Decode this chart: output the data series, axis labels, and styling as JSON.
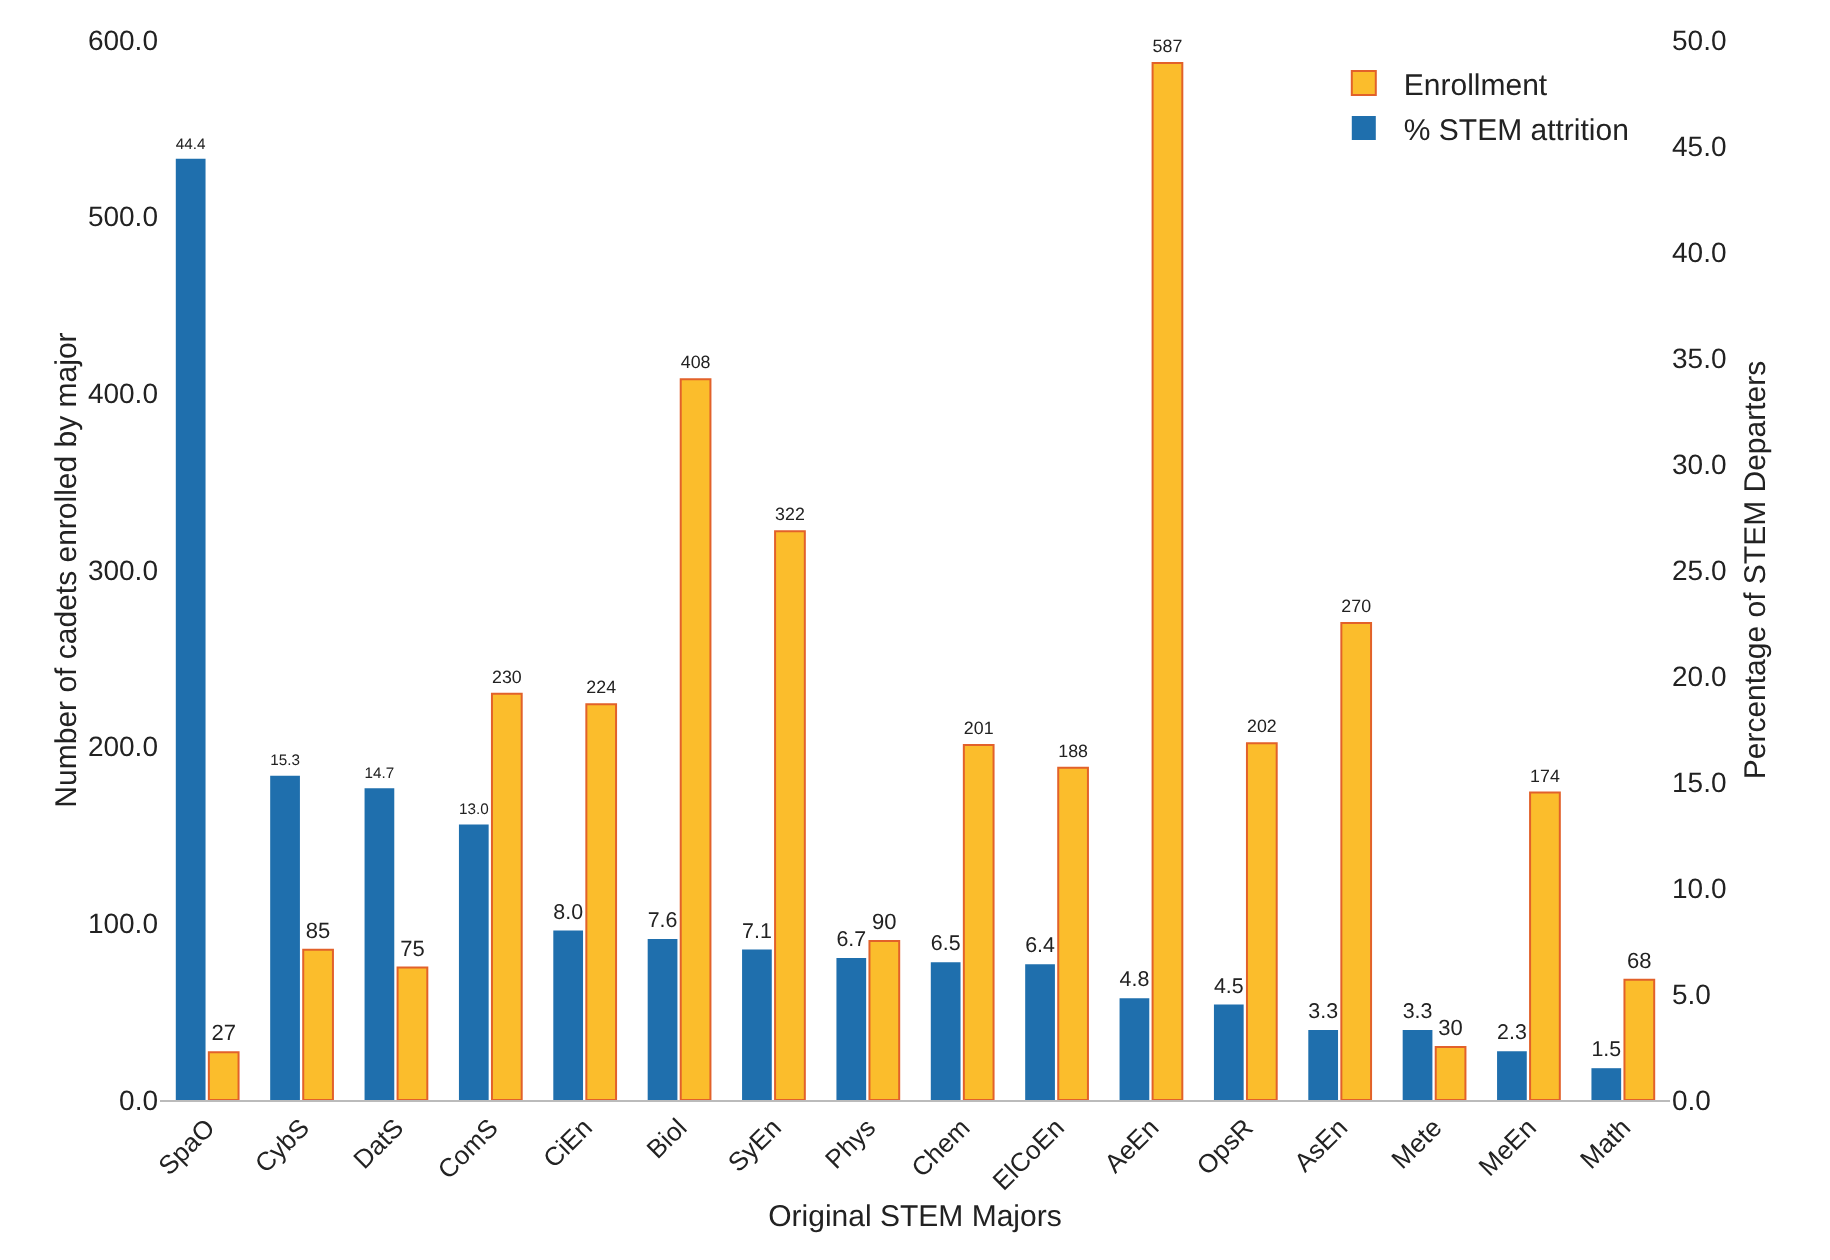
{
  "chart_data": {
    "type": "bar",
    "xlabel": "Original STEM Majors",
    "ylabel": "Number of cadets enrolled by major",
    "y2label": "Percentage of STEM Departers",
    "categories": [
      "SpaO",
      "CybS",
      "DatS",
      "ComS",
      "CiEn",
      "Biol",
      "SyEn",
      "Phys",
      "Chem",
      "ElCoEn",
      "AeEn",
      "OpsR",
      "AsEn",
      "Mete",
      "MeEn",
      "Math"
    ],
    "series": [
      {
        "name": "% STEM attrition",
        "color": "#1f6fad",
        "axis": "y2",
        "values": [
          44.4,
          15.3,
          14.7,
          13.0,
          8.0,
          7.6,
          7.1,
          6.7,
          6.5,
          6.4,
          4.8,
          4.5,
          3.3,
          3.3,
          2.3,
          1.5
        ],
        "value_labels": [
          "44.4",
          "15.3",
          "14.7",
          "13.0",
          "8.0",
          "7.6",
          "7.1",
          "6.7",
          "6.5",
          "6.4",
          "4.8",
          "4.5",
          "3.3",
          "3.3",
          "2.3",
          "1.5"
        ]
      },
      {
        "name": "Enrollment",
        "color": "#fbbd2c",
        "values": [
          27,
          85,
          75,
          230,
          224,
          408,
          322,
          90,
          201,
          188,
          587,
          202,
          270,
          30,
          174,
          68
        ],
        "value_labels": [
          "27",
          "85",
          "75",
          "230",
          "224",
          "408",
          "322",
          "90",
          "201",
          "188",
          "587",
          "202",
          "270",
          "30",
          "174",
          "68"
        ]
      }
    ],
    "ylim": [
      0,
      600
    ],
    "yticks": [
      {
        "value": 0,
        "label": "0.0"
      },
      {
        "value": 100,
        "label": "100.0"
      },
      {
        "value": 200,
        "label": "200.0"
      },
      {
        "value": 300,
        "label": "300.0"
      },
      {
        "value": 400,
        "label": "400.0"
      },
      {
        "value": 500,
        "label": "500.0"
      },
      {
        "value": 600,
        "label": "600.0"
      }
    ],
    "y2lim": [
      0,
      50
    ],
    "y2ticks": [
      {
        "value": 0,
        "label": "0.0"
      },
      {
        "value": 5,
        "label": "5.0"
      },
      {
        "value": 10,
        "label": "10.0"
      },
      {
        "value": 15,
        "label": "15.0"
      },
      {
        "value": 20,
        "label": "20.0"
      },
      {
        "value": 25,
        "label": "25.0"
      },
      {
        "value": 30,
        "label": "30.0"
      },
      {
        "value": 35,
        "label": "35.0"
      },
      {
        "value": 40,
        "label": "40.0"
      },
      {
        "value": 45,
        "label": "45.0"
      },
      {
        "value": 50,
        "label": "50.0"
      }
    ],
    "grid": false,
    "legend": "top right"
  }
}
